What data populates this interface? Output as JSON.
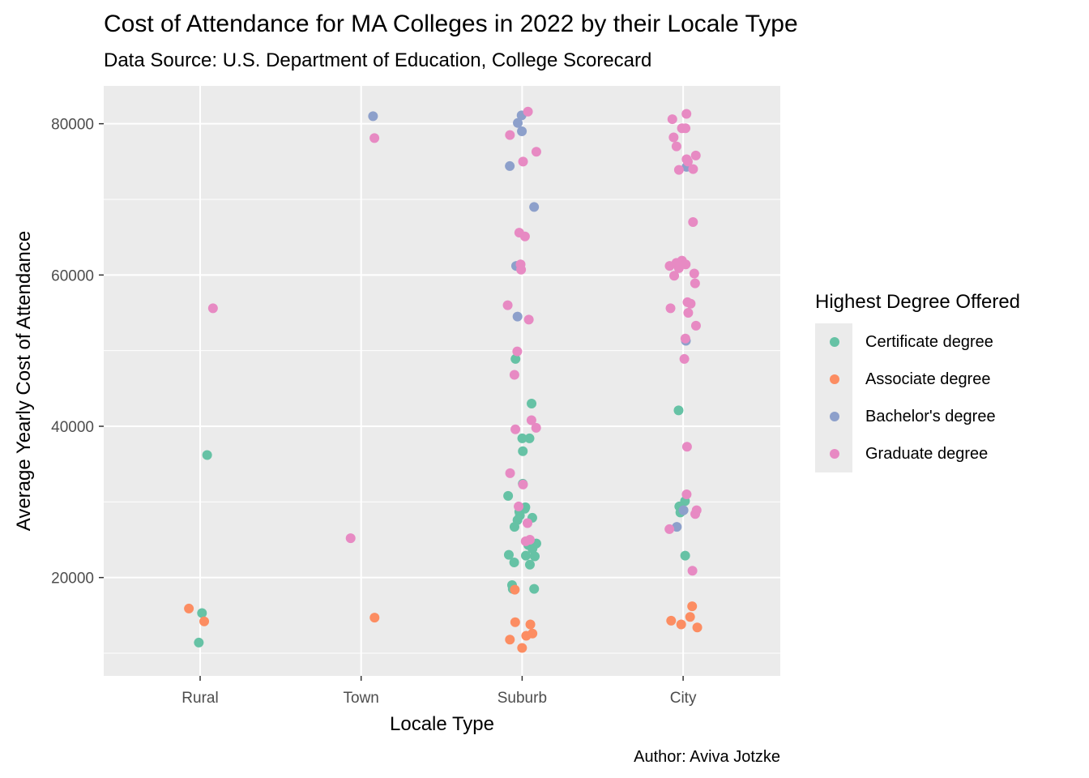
{
  "title": "Cost of Attendance for MA Colleges in 2022 by their Locale Type",
  "subtitle": "Data Source: U.S. Department of Education, College Scorecard",
  "caption": "Author: Aviva Jotzke",
  "legend": {
    "title": "Highest Degree Offered",
    "items": [
      {
        "label": "Certificate degree",
        "color": "#66c2a5"
      },
      {
        "label": "Associate degree",
        "color": "#fc8d62"
      },
      {
        "label": "Bachelor's degree",
        "color": "#8da0cb"
      },
      {
        "label": "Graduate degree",
        "color": "#e78ac3"
      }
    ]
  },
  "chart_data": {
    "type": "scatter",
    "xlabel": "Locale Type",
    "ylabel": "Average Yearly Cost of Attendance",
    "categories": [
      "Rural",
      "Town",
      "Suburb",
      "City"
    ],
    "ylim": [
      7000,
      85000
    ],
    "yticks": [
      20000,
      40000,
      60000,
      80000
    ],
    "yticks_labels": [
      "20000",
      "40000",
      "60000",
      "80000"
    ],
    "grid": true,
    "legend_position": "right",
    "series": [
      {
        "name": "Certificate degree",
        "color": "#66c2a5",
        "points": [
          [
            "Rural",
            36200
          ],
          [
            "Rural",
            15300
          ],
          [
            "Rural",
            11400
          ],
          [
            "Suburb",
            48900
          ],
          [
            "Suburb",
            43000
          ],
          [
            "Suburb",
            38400
          ],
          [
            "Suburb",
            38400
          ],
          [
            "Suburb",
            36700
          ],
          [
            "Suburb",
            32400
          ],
          [
            "Suburb",
            30800
          ],
          [
            "Suburb",
            29100
          ],
          [
            "Suburb",
            29300
          ],
          [
            "Suburb",
            28700
          ],
          [
            "Suburb",
            27900
          ],
          [
            "Suburb",
            27600
          ],
          [
            "Suburb",
            28200
          ],
          [
            "Suburb",
            26700
          ],
          [
            "Suburb",
            24500
          ],
          [
            "Suburb",
            24300
          ],
          [
            "Suburb",
            24000
          ],
          [
            "Suburb",
            23800
          ],
          [
            "Suburb",
            23000
          ],
          [
            "Suburb",
            22900
          ],
          [
            "Suburb",
            22800
          ],
          [
            "Suburb",
            22000
          ],
          [
            "Suburb",
            21700
          ],
          [
            "Suburb",
            19000
          ],
          [
            "Suburb",
            18500
          ],
          [
            "Suburb",
            18500
          ],
          [
            "City",
            42100
          ],
          [
            "City",
            30100
          ],
          [
            "City",
            29400
          ],
          [
            "City",
            28600
          ],
          [
            "City",
            22900
          ]
        ]
      },
      {
        "name": "Associate degree",
        "color": "#fc8d62",
        "points": [
          [
            "Rural",
            15900
          ],
          [
            "Rural",
            14200
          ],
          [
            "Town",
            14700
          ],
          [
            "Suburb",
            18400
          ],
          [
            "Suburb",
            14100
          ],
          [
            "Suburb",
            13800
          ],
          [
            "Suburb",
            12600
          ],
          [
            "Suburb",
            12300
          ],
          [
            "Suburb",
            11800
          ],
          [
            "Suburb",
            10700
          ],
          [
            "City",
            16200
          ],
          [
            "City",
            14800
          ],
          [
            "City",
            14300
          ],
          [
            "City",
            13800
          ],
          [
            "City",
            13400
          ]
        ]
      },
      {
        "name": "Bachelor's degree",
        "color": "#8da0cb",
        "points": [
          [
            "Town",
            81000
          ],
          [
            "Suburb",
            81100
          ],
          [
            "Suburb",
            80100
          ],
          [
            "Suburb",
            79000
          ],
          [
            "Suburb",
            74400
          ],
          [
            "Suburb",
            69000
          ],
          [
            "Suburb",
            61200
          ],
          [
            "Suburb",
            54500
          ],
          [
            "City",
            74300
          ],
          [
            "City",
            51300
          ],
          [
            "City",
            28900
          ],
          [
            "City",
            26700
          ]
        ]
      },
      {
        "name": "Graduate degree",
        "color": "#e78ac3",
        "points": [
          [
            "Rural",
            55600
          ],
          [
            "Town",
            78100
          ],
          [
            "Town",
            25200
          ],
          [
            "Suburb",
            81600
          ],
          [
            "Suburb",
            78500
          ],
          [
            "Suburb",
            76300
          ],
          [
            "Suburb",
            75000
          ],
          [
            "Suburb",
            65600
          ],
          [
            "Suburb",
            65100
          ],
          [
            "Suburb",
            61400
          ],
          [
            "Suburb",
            60700
          ],
          [
            "Suburb",
            56000
          ],
          [
            "Suburb",
            54100
          ],
          [
            "Suburb",
            49900
          ],
          [
            "Suburb",
            46800
          ],
          [
            "Suburb",
            40800
          ],
          [
            "Suburb",
            39800
          ],
          [
            "Suburb",
            39600
          ],
          [
            "Suburb",
            33800
          ],
          [
            "Suburb",
            32300
          ],
          [
            "Suburb",
            29400
          ],
          [
            "Suburb",
            27200
          ],
          [
            "Suburb",
            25000
          ],
          [
            "Suburb",
            24800
          ],
          [
            "City",
            81300
          ],
          [
            "City",
            80600
          ],
          [
            "City",
            79400
          ],
          [
            "City",
            79400
          ],
          [
            "City",
            78200
          ],
          [
            "City",
            77000
          ],
          [
            "City",
            75800
          ],
          [
            "City",
            75300
          ],
          [
            "City",
            75000
          ],
          [
            "City",
            74000
          ],
          [
            "City",
            73900
          ],
          [
            "City",
            67000
          ],
          [
            "City",
            61900
          ],
          [
            "City",
            61600
          ],
          [
            "City",
            61400
          ],
          [
            "City",
            61200
          ],
          [
            "City",
            60900
          ],
          [
            "City",
            60200
          ],
          [
            "City",
            59900
          ],
          [
            "City",
            58900
          ],
          [
            "City",
            56400
          ],
          [
            "City",
            56200
          ],
          [
            "City",
            55600
          ],
          [
            "City",
            55000
          ],
          [
            "City",
            53300
          ],
          [
            "City",
            51600
          ],
          [
            "City",
            48900
          ],
          [
            "City",
            37300
          ],
          [
            "City",
            31000
          ],
          [
            "City",
            28900
          ],
          [
            "City",
            28400
          ],
          [
            "City",
            26400
          ],
          [
            "City",
            20900
          ]
        ]
      }
    ]
  }
}
